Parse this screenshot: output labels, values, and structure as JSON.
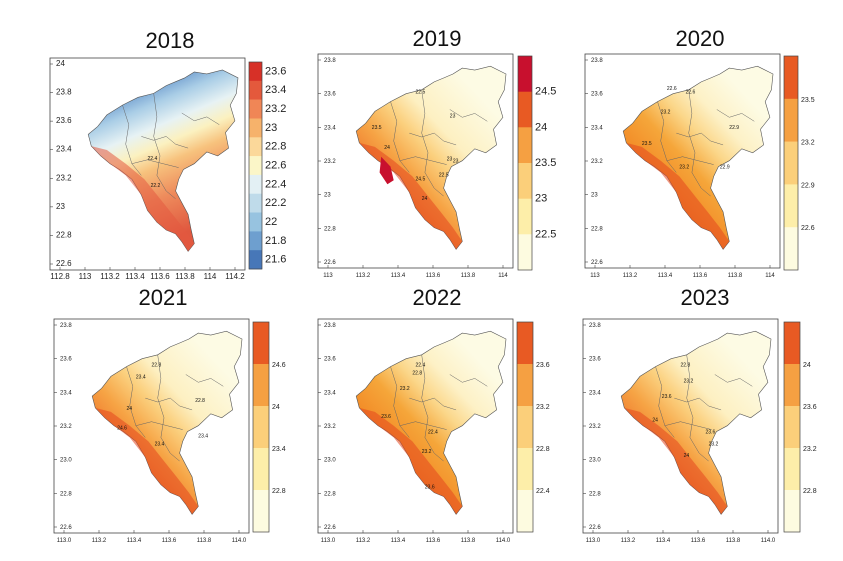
{
  "chart_data": [
    {
      "type": "heatmap",
      "title": "2018",
      "x_ticks": [
        "112.8",
        "113",
        "113.2",
        "113.4",
        "113.6",
        "113.8",
        "114",
        "114.2"
      ],
      "y_ticks": [
        "24",
        "23.8",
        "23.6",
        "23.4",
        "23.2",
        "23",
        "22.8",
        "22.6"
      ],
      "xlim": [
        112.75,
        114.25
      ],
      "ylim": [
        22.5,
        24.05
      ],
      "legend": "right",
      "colorbar": {
        "labels": [
          "23.6",
          "23.4",
          "23.2",
          "23",
          "22.8",
          "22.6",
          "22.4",
          "22.2",
          "22",
          "21.8",
          "21.6"
        ],
        "colors": [
          "#d73027",
          "#e4593c",
          "#f08656",
          "#f6b26b",
          "#fbd89a",
          "#fbf6c8",
          "#e3f0f4",
          "#bfdbea",
          "#97c3e0",
          "#6e9fcf",
          "#4777b8"
        ]
      },
      "isolines": [
        "22.4",
        "22.2"
      ]
    },
    {
      "type": "heatmap",
      "title": "2019",
      "x_ticks": [
        "113",
        "113.2",
        "113.4",
        "113.6",
        "113.8",
        "114"
      ],
      "y_ticks": [
        "23.8",
        "23.6",
        "23.4",
        "23.2",
        "23",
        "22.8",
        "22.6"
      ],
      "xlim": [
        112.92,
        114.08
      ],
      "ylim": [
        22.55,
        23.95
      ],
      "legend": "right",
      "colorbar": {
        "labels": [
          "24.5",
          "24",
          "23.5",
          "23",
          "22.5"
        ],
        "colors": [
          "#c8102e",
          "#e85a23",
          "#f5a042",
          "#fbcf7a",
          "#fdeea9",
          "#fdfbe0"
        ]
      },
      "isolines": [
        "22.5",
        "23",
        "23.5",
        "24",
        "24.5",
        "22.5",
        "23",
        "23",
        "24"
      ]
    },
    {
      "type": "heatmap",
      "title": "2020",
      "x_ticks": [
        "113",
        "113.2",
        "113.4",
        "113.6",
        "113.8",
        "114"
      ],
      "y_ticks": [
        "23.8",
        "23.6",
        "23.4",
        "23.2",
        "23",
        "22.8",
        "22.6"
      ],
      "xlim": [
        112.92,
        114.08
      ],
      "ylim": [
        22.55,
        23.95
      ],
      "legend": "right",
      "colorbar": {
        "labels": [
          "23.5",
          "23.2",
          "22.9",
          "22.6"
        ],
        "colors": [
          "#e85a23",
          "#f5a042",
          "#fbcf7a",
          "#fdeea9",
          "#fdfbe0"
        ]
      },
      "isolines": [
        "22.6",
        "22.6",
        "23.2",
        "22.9",
        "23.5",
        "23.2",
        "22.9"
      ]
    },
    {
      "type": "heatmap",
      "title": "2021",
      "x_ticks": [
        "113.0",
        "113.2",
        "113.4",
        "113.6",
        "113.8",
        "114.0"
      ],
      "y_ticks": [
        "23.8",
        "23.6",
        "23.4",
        "23.2",
        "23.0",
        "22.8",
        "22.6"
      ],
      "xlim": [
        112.92,
        114.08
      ],
      "ylim": [
        22.55,
        23.95
      ],
      "legend": "right",
      "colorbar": {
        "labels": [
          "24.6",
          "24",
          "23.4",
          "22.8"
        ],
        "colors": [
          "#e85a23",
          "#f5a042",
          "#fbcf7a",
          "#fdeea9",
          "#fdfbe0"
        ]
      },
      "isolines": [
        "22.8",
        "22.8",
        "23.4",
        "24",
        "24.6",
        "23.4",
        "23.4"
      ]
    },
    {
      "type": "heatmap",
      "title": "2022",
      "x_ticks": [
        "113.0",
        "113.2",
        "113.4",
        "113.6",
        "113.8",
        "114.0"
      ],
      "y_ticks": [
        "23.8",
        "23.6",
        "23.4",
        "23.2",
        "23.0",
        "22.8",
        "22.6"
      ],
      "xlim": [
        112.92,
        114.08
      ],
      "ylim": [
        22.55,
        23.95
      ],
      "legend": "right",
      "colorbar": {
        "labels": [
          "23.6",
          "23.2",
          "22.8",
          "22.4"
        ],
        "colors": [
          "#e85a23",
          "#f5a042",
          "#fbcf7a",
          "#fdeea9",
          "#fdfbe0"
        ]
      },
      "isolines": [
        "22.4",
        "22.8",
        "23.2",
        "23.6",
        "22.4",
        "23.2",
        "23.6"
      ]
    },
    {
      "type": "heatmap",
      "title": "2023",
      "x_ticks": [
        "113.0",
        "113.2",
        "113.4",
        "113.6",
        "113.8",
        "114.0"
      ],
      "y_ticks": [
        "23.8",
        "23.6",
        "23.4",
        "23.2",
        "23.0",
        "22.8",
        "22.6"
      ],
      "xlim": [
        112.92,
        114.08
      ],
      "ylim": [
        22.55,
        23.95
      ],
      "legend": "right",
      "colorbar": {
        "labels": [
          "24",
          "23.6",
          "23.2",
          "22.8"
        ],
        "colors": [
          "#e85a23",
          "#f5a042",
          "#fbcf7a",
          "#fdeea9",
          "#fdfbe0"
        ]
      },
      "isolines": [
        "22.8",
        "23.2",
        "23.6",
        "24",
        "23.6",
        "24",
        "23.2"
      ]
    }
  ]
}
